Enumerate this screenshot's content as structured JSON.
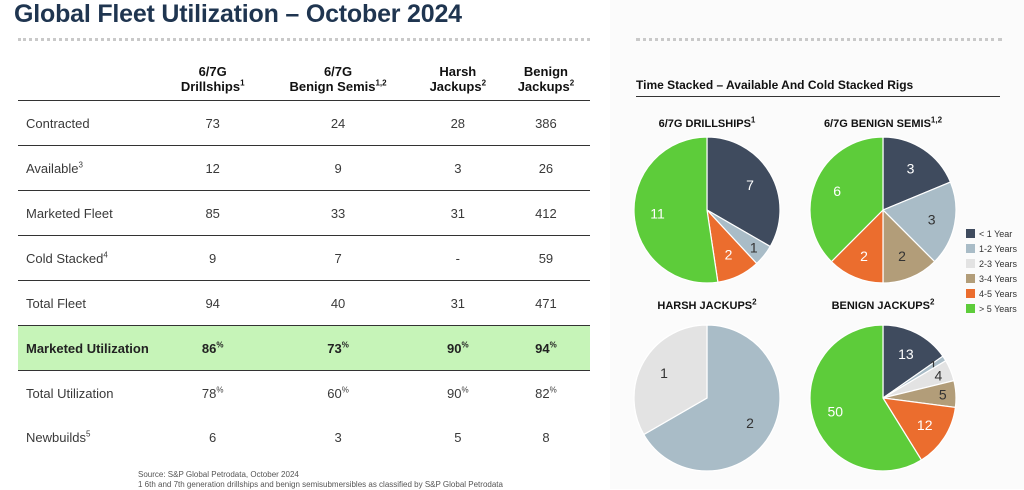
{
  "page": {
    "title": "Global Fleet Utilization – October 2024"
  },
  "table": {
    "columns": [
      {
        "line1": "6/7G",
        "line2": "Drillships",
        "sup": "1"
      },
      {
        "line1": "6/7G",
        "line2": "Benign Semis",
        "sup": "1,2"
      },
      {
        "line1": "Harsh",
        "line2": "Jackups",
        "sup": "2"
      },
      {
        "line1": "Benign",
        "line2": "Jackups",
        "sup": "2"
      }
    ],
    "rows": [
      {
        "label": "Contracted",
        "sup": "",
        "values": [
          "73",
          "24",
          "28",
          "386"
        ],
        "pct": false
      },
      {
        "label": "Available",
        "sup": "3",
        "values": [
          "12",
          "9",
          "3",
          "26"
        ],
        "pct": false
      },
      {
        "label": "Marketed Fleet",
        "sup": "",
        "values": [
          "85",
          "33",
          "31",
          "412"
        ],
        "pct": false
      },
      {
        "label": "Cold Stacked",
        "sup": "4",
        "values": [
          "9",
          "7",
          "-",
          "59"
        ],
        "pct": false
      },
      {
        "label": "Total Fleet",
        "sup": "",
        "values": [
          "94",
          "40",
          "31",
          "471"
        ],
        "pct": false
      },
      {
        "label": "Marketed Utilization",
        "sup": "",
        "values": [
          "86",
          "73",
          "90",
          "94"
        ],
        "pct": true
      },
      {
        "label": "Total Utilization",
        "sup": "",
        "values": [
          "78",
          "60",
          "90",
          "82"
        ],
        "pct": true
      },
      {
        "label": "Newbuilds",
        "sup": "5",
        "values": [
          "6",
          "3",
          "5",
          "8"
        ],
        "pct": false
      }
    ],
    "pct_symbol": "%"
  },
  "footnotes": {
    "source": "Source: S&P Global Petrodata, October 2024",
    "note1": "1 6th and 7th generation drillships and benign semisubmersibles as classified by S&P Global Petrodata"
  },
  "right": {
    "chart_title": "Time Stacked – Available And Cold Stacked Rigs"
  },
  "chart_data": {
    "type": "pie",
    "title": "Time Stacked – Available And Cold Stacked Rigs",
    "legend_position": "right",
    "categories": [
      "< 1 Year",
      "1-2 Years",
      "2-3 Years",
      "3-4 Years",
      "4-5 Years",
      "> 5 Years"
    ],
    "colors": [
      "#3f4b5e",
      "#a9bcc7",
      "#e3e3e3",
      "#b29d79",
      "#eb6d2e",
      "#5dcc3a"
    ],
    "pies": [
      {
        "title": "6/7G DRILLSHIPS",
        "sup": "1",
        "values": [
          7,
          1,
          0,
          0,
          2,
          11
        ]
      },
      {
        "title": "6/7G BENIGN SEMIS",
        "sup": "1,2",
        "values": [
          3,
          3,
          0,
          2,
          2,
          6
        ]
      },
      {
        "title": "HARSH JACKUPS",
        "sup": "2",
        "values": [
          0,
          2,
          1,
          0,
          0,
          0
        ]
      },
      {
        "title": "BENIGN JACKUPS",
        "sup": "2",
        "values": [
          13,
          1,
          4,
          5,
          12,
          50
        ]
      }
    ]
  }
}
